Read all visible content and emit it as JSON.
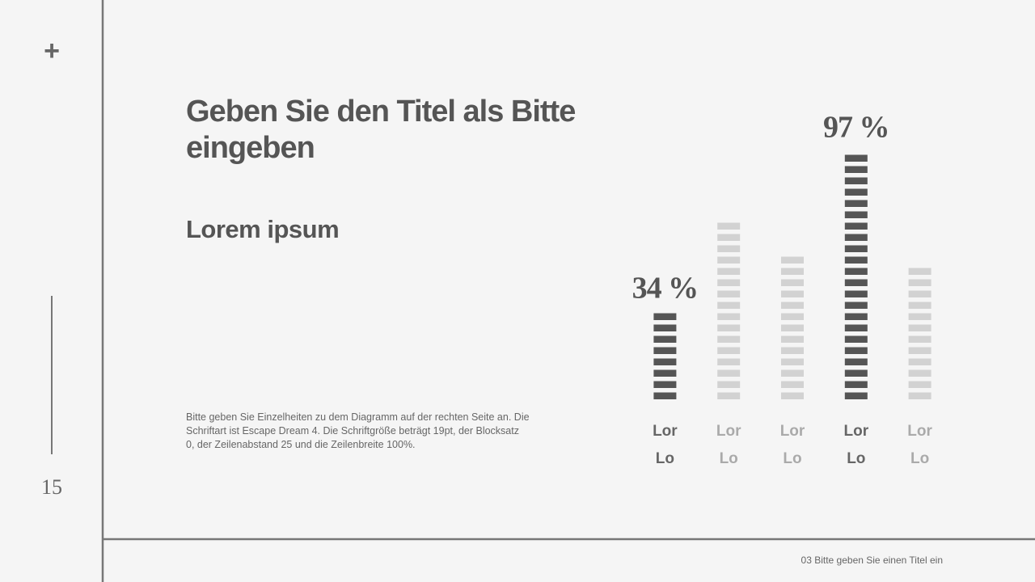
{
  "slide": {
    "icon": "+",
    "page_number": "15",
    "title": "Geben Sie den Titel als Bitte eingeben",
    "subtitle": "Lorem ipsum",
    "body": "Bitte geben Sie Einzelheiten zu dem Diagramm auf der rechten Seite an. Die Schriftart ist Escape Dream 4. Die Schriftgröße beträgt 19pt, der Blocksatz 0, der Zeilenabstand 25 und die Zeilenbreite 100%.",
    "footer": "03 Bitte geben Sie einen Titel ein"
  },
  "chart_data": {
    "type": "bar",
    "categories": [
      "Lor Lo",
      "Lor Lo",
      "Lor Lo",
      "Lor Lo",
      "Lor Lo"
    ],
    "values": [
      34,
      70,
      57,
      97,
      53
    ],
    "value_labels": [
      "34 %",
      null,
      null,
      "97 %",
      null
    ],
    "colors": [
      "#555555",
      "#d2d2d2",
      "#d2d2d2",
      "#555555",
      "#d2d2d2"
    ],
    "label_colors": [
      "#666666",
      "#aaaaaa",
      "#aaaaaa",
      "#666666",
      "#aaaaaa"
    ],
    "ylim": [
      0,
      100
    ]
  }
}
